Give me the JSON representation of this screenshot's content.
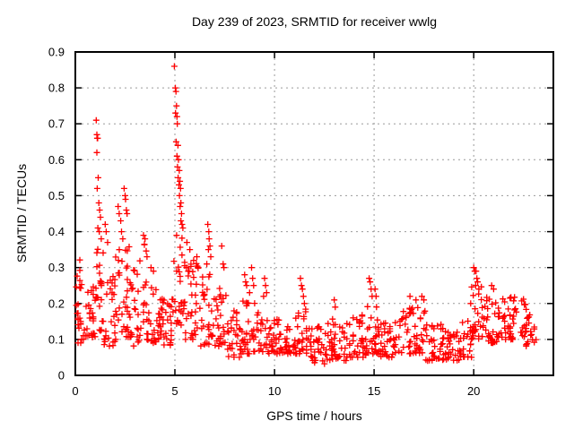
{
  "chart_data": {
    "type": "scatter",
    "title": "Day 239 of 2023, SRMTID for receiver wwlg",
    "xlabel": "GPS time / hours",
    "ylabel": "SRMTID / TECUs",
    "xlim": [
      0,
      24
    ],
    "ylim": [
      0,
      0.9
    ],
    "xticks": [
      0,
      5,
      10,
      15,
      20
    ],
    "xtick_labels": [
      "0",
      "5",
      "10",
      "15",
      "20"
    ],
    "yticks": [
      0,
      0.1,
      0.2,
      0.3,
      0.4,
      0.5,
      0.6,
      0.7,
      0.8,
      0.9
    ],
    "ytick_labels": [
      "0",
      "0.1",
      "0.2",
      "0.3",
      "0.4",
      "0.5",
      "0.6",
      "0.7",
      "0.8",
      "0.9"
    ],
    "grid": true,
    "legend_position": "none",
    "marker": "plus",
    "marker_color": "#ff0000",
    "grid_color": "#9a9a9a",
    "axis_color": "#000000",
    "background_color": "#ffffff",
    "x_data_range_hours": [
      0,
      23.1
    ],
    "band_segments_format": "[t_start_hours, t_end_hours, y_min_TECU, y_max_TECU, point_count]",
    "band_segments": [
      [
        0.02,
        0.5,
        0.09,
        0.33,
        26
      ],
      [
        0.5,
        1.0,
        0.1,
        0.28,
        24
      ],
      [
        1.0,
        1.45,
        0.12,
        0.36,
        22
      ],
      [
        1.45,
        2.0,
        0.08,
        0.3,
        26
      ],
      [
        2.0,
        2.7,
        0.1,
        0.36,
        34
      ],
      [
        2.7,
        3.3,
        0.08,
        0.32,
        28
      ],
      [
        3.3,
        3.6,
        0.12,
        0.37,
        14
      ],
      [
        3.6,
        4.4,
        0.09,
        0.27,
        36
      ],
      [
        4.4,
        4.9,
        0.08,
        0.22,
        22
      ],
      [
        4.9,
        5.45,
        0.14,
        0.4,
        26
      ],
      [
        5.45,
        6.3,
        0.1,
        0.33,
        38
      ],
      [
        6.3,
        7.0,
        0.08,
        0.3,
        30
      ],
      [
        7.0,
        7.6,
        0.08,
        0.25,
        26
      ],
      [
        7.6,
        8.3,
        0.05,
        0.18,
        30
      ],
      [
        8.3,
        9.1,
        0.06,
        0.21,
        34
      ],
      [
        9.1,
        10.2,
        0.06,
        0.18,
        44
      ],
      [
        10.2,
        11.1,
        0.06,
        0.16,
        36
      ],
      [
        11.1,
        11.8,
        0.06,
        0.19,
        28
      ],
      [
        11.8,
        12.6,
        0.03,
        0.15,
        32
      ],
      [
        12.6,
        13.6,
        0.04,
        0.16,
        40
      ],
      [
        13.6,
        14.6,
        0.05,
        0.17,
        40
      ],
      [
        14.6,
        15.2,
        0.06,
        0.2,
        24
      ],
      [
        15.2,
        16.3,
        0.05,
        0.15,
        44
      ],
      [
        16.3,
        17.6,
        0.06,
        0.19,
        52
      ],
      [
        17.6,
        18.6,
        0.04,
        0.15,
        40
      ],
      [
        18.6,
        19.4,
        0.04,
        0.12,
        30
      ],
      [
        19.4,
        19.9,
        0.05,
        0.16,
        20
      ],
      [
        19.9,
        20.4,
        0.1,
        0.25,
        22
      ],
      [
        20.4,
        21.5,
        0.09,
        0.23,
        44
      ],
      [
        21.5,
        22.6,
        0.1,
        0.22,
        44
      ],
      [
        22.6,
        23.15,
        0.08,
        0.19,
        22
      ]
    ],
    "peak_points": [
      [
        1.05,
        0.71
      ],
      [
        1.08,
        0.67
      ],
      [
        1.1,
        0.66
      ],
      [
        1.12,
        0.66
      ],
      [
        1.08,
        0.62
      ],
      [
        1.15,
        0.55
      ],
      [
        1.1,
        0.52
      ],
      [
        1.18,
        0.48
      ],
      [
        1.22,
        0.46
      ],
      [
        1.26,
        0.44
      ],
      [
        1.13,
        0.41
      ],
      [
        1.2,
        0.4
      ],
      [
        1.3,
        0.38
      ],
      [
        1.5,
        0.42
      ],
      [
        1.55,
        0.4
      ],
      [
        1.62,
        0.37
      ],
      [
        2.15,
        0.47
      ],
      [
        2.2,
        0.45
      ],
      [
        2.28,
        0.43
      ],
      [
        2.32,
        0.4
      ],
      [
        2.38,
        0.38
      ],
      [
        2.45,
        0.52
      ],
      [
        2.5,
        0.5
      ],
      [
        2.52,
        0.49
      ],
      [
        2.56,
        0.46
      ],
      [
        2.6,
        0.45
      ],
      [
        3.42,
        0.39
      ],
      [
        3.5,
        0.38
      ],
      [
        3.8,
        0.3
      ],
      [
        3.92,
        0.29
      ],
      [
        4.97,
        0.86
      ],
      [
        5.02,
        0.8
      ],
      [
        5.05,
        0.79
      ],
      [
        5.08,
        0.75
      ],
      [
        5.03,
        0.73
      ],
      [
        5.1,
        0.72
      ],
      [
        5.12,
        0.7
      ],
      [
        5.06,
        0.65
      ],
      [
        5.15,
        0.64
      ],
      [
        5.1,
        0.61
      ],
      [
        5.18,
        0.6
      ],
      [
        5.13,
        0.58
      ],
      [
        5.22,
        0.57
      ],
      [
        5.16,
        0.55
      ],
      [
        5.25,
        0.54
      ],
      [
        5.2,
        0.53
      ],
      [
        5.28,
        0.52
      ],
      [
        5.23,
        0.5
      ],
      [
        5.3,
        0.48
      ],
      [
        5.26,
        0.47
      ],
      [
        5.33,
        0.45
      ],
      [
        5.3,
        0.43
      ],
      [
        5.36,
        0.42
      ],
      [
        5.4,
        0.41
      ],
      [
        5.6,
        0.37
      ],
      [
        5.75,
        0.35
      ],
      [
        6.1,
        0.33
      ],
      [
        6.65,
        0.42
      ],
      [
        6.7,
        0.4
      ],
      [
        6.72,
        0.38
      ],
      [
        6.76,
        0.36
      ],
      [
        6.68,
        0.35
      ],
      [
        6.8,
        0.33
      ],
      [
        6.6,
        0.31
      ],
      [
        7.35,
        0.36
      ],
      [
        7.42,
        0.31
      ],
      [
        7.46,
        0.3
      ],
      [
        8.5,
        0.28
      ],
      [
        8.55,
        0.26
      ],
      [
        8.6,
        0.25
      ],
      [
        8.75,
        0.23
      ],
      [
        8.85,
        0.3
      ],
      [
        8.9,
        0.27
      ],
      [
        8.95,
        0.25
      ],
      [
        9.45,
        0.22
      ],
      [
        9.5,
        0.27
      ],
      [
        9.55,
        0.25
      ],
      [
        9.6,
        0.23
      ],
      [
        11.3,
        0.27
      ],
      [
        11.35,
        0.25
      ],
      [
        11.4,
        0.24
      ],
      [
        11.45,
        0.22
      ],
      [
        11.5,
        0.2
      ],
      [
        13.0,
        0.21
      ],
      [
        13.05,
        0.19
      ],
      [
        14.75,
        0.27
      ],
      [
        14.8,
        0.26
      ],
      [
        14.85,
        0.24
      ],
      [
        14.9,
        0.22
      ],
      [
        15.05,
        0.24
      ],
      [
        15.1,
        0.22
      ],
      [
        16.8,
        0.22
      ],
      [
        17.1,
        0.21
      ],
      [
        17.4,
        0.22
      ],
      [
        17.5,
        0.21
      ],
      [
        19.85,
        0.2
      ],
      [
        20.0,
        0.3
      ],
      [
        20.05,
        0.29
      ],
      [
        20.12,
        0.29
      ],
      [
        20.16,
        0.27
      ],
      [
        20.2,
        0.26
      ],
      [
        20.1,
        0.25
      ],
      [
        20.26,
        0.24
      ],
      [
        20.9,
        0.25
      ],
      [
        21.0,
        0.24
      ]
    ]
  }
}
